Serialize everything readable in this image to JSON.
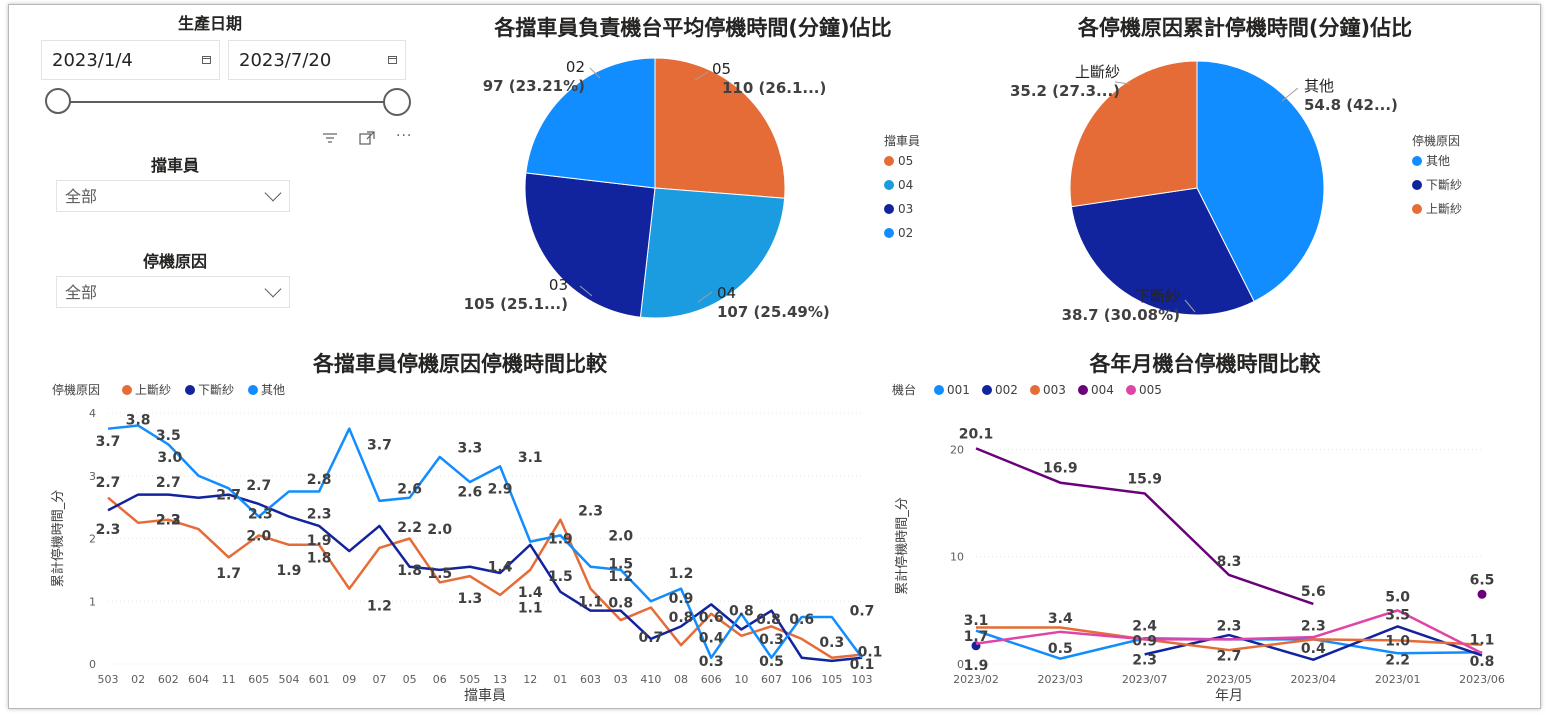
{
  "slicers": {
    "date": {
      "title": "生產日期",
      "start": "2023/1/4",
      "end": "2023/7/20"
    },
    "operator": {
      "title": "擋車員",
      "value": "全部"
    },
    "reason": {
      "title": "停機原因",
      "value": "全部"
    }
  },
  "colors": {
    "orange": "#E66C37",
    "blue": "#118DFF",
    "navy": "#12239E",
    "lightblue": "#1B9BE0",
    "purple": "#6B007B",
    "pink": "#E044A7"
  },
  "pie1": {
    "title": "各擋車員負責機台平均停機時間(分鐘)佔比",
    "legend_title": "擋車員",
    "slices": [
      {
        "name": "05",
        "value": 110,
        "label_top": "05",
        "label_bottom": "110 (26.1...)",
        "color": "#E66C37"
      },
      {
        "name": "04",
        "value": 107,
        "label_top": "04",
        "label_bottom": "107 (25.49%)",
        "color": "#1B9BE0"
      },
      {
        "name": "03",
        "value": 105,
        "label_top": "03",
        "label_bottom": "105 (25.1...)",
        "color": "#12239E"
      },
      {
        "name": "02",
        "value": 97,
        "label_top": "02",
        "label_bottom": "97 (23.21%)",
        "color": "#118DFF"
      }
    ]
  },
  "pie2": {
    "title": "各停機原因累計停機時間(分鐘)佔比",
    "legend_title": "停機原因",
    "slices": [
      {
        "name": "其他",
        "value": 54.8,
        "label_top": "其他",
        "label_bottom": "54.8 (42...)",
        "color": "#118DFF"
      },
      {
        "name": "下斷紗",
        "value": 38.7,
        "label_top": "下斷紗",
        "label_bottom": "38.7 (30.08%)",
        "color": "#12239E"
      },
      {
        "name": "上斷紗",
        "value": 35.2,
        "label_top": "上斷紗",
        "label_bottom": "35.2 (27.3...)",
        "color": "#E66C37"
      }
    ]
  },
  "chart_data": [
    {
      "type": "line",
      "title": "各擋車員停機原因停機時間比較",
      "xlabel": "擋車員",
      "ylabel": "累計停機時間_分",
      "legend_title": "停機原因",
      "ylim": [
        0,
        4
      ],
      "yticks": [
        "0",
        "1",
        "2",
        "3",
        "4"
      ],
      "categories": [
        "503",
        "02",
        "602",
        "604",
        "11",
        "605",
        "504",
        "601",
        "09",
        "07",
        "05",
        "06",
        "505",
        "13",
        "12",
        "01",
        "603",
        "03",
        "410",
        "08",
        "606",
        "10",
        "607",
        "106",
        "105",
        "103"
      ],
      "series": [
        {
          "name": "上斷紗",
          "color": "#E66C37",
          "values": [
            2.65,
            2.25,
            2.3,
            2.15,
            1.7,
            2.05,
            1.9,
            1.9,
            1.2,
            1.85,
            2.0,
            1.3,
            1.4,
            1.1,
            1.5,
            2.3,
            1.2,
            0.7,
            0.9,
            0.3,
            0.8,
            0.45,
            0.6,
            0.4,
            0.1,
            0.15
          ]
        },
        {
          "name": "下斷紗",
          "color": "#12239E",
          "values": [
            2.45,
            2.7,
            2.7,
            2.65,
            2.7,
            2.55,
            2.35,
            2.2,
            1.8,
            2.2,
            1.55,
            1.5,
            1.55,
            1.45,
            1.9,
            1.15,
            0.85,
            0.85,
            0.4,
            0.6,
            0.95,
            0.55,
            0.85,
            0.1,
            0.05,
            0.1
          ]
        },
        {
          "name": "其他",
          "color": "#118DFF",
          "values": [
            3.75,
            3.8,
            3.5,
            3.0,
            2.8,
            2.35,
            2.75,
            2.75,
            3.75,
            2.6,
            2.65,
            3.3,
            2.9,
            3.15,
            1.95,
            2.05,
            1.55,
            1.5,
            1.0,
            1.2,
            0.1,
            0.8,
            0.1,
            0.75,
            0.75,
            0.1
          ]
        }
      ],
      "data_labels": [
        "3.7",
        "3.8",
        "3.5",
        "3.0",
        "2.7",
        "2.7",
        "2.7",
        "2.3",
        "2.3",
        "2.2",
        "1.7",
        "2.0",
        "2.7",
        "2.3",
        "1.9",
        "1.8",
        "1.9",
        "2.8",
        "2.3",
        "3.7",
        "1.2",
        "2.6",
        "2.2",
        "1.8",
        "2.0",
        "1.5",
        "3.3",
        "2.6",
        "1.3",
        "2.9",
        "1.4",
        "3.1",
        "1.4",
        "1.1",
        "1.9",
        "1.5",
        "1.1",
        "2.3",
        "2.0",
        "1.5",
        "1.2",
        "0.8",
        "0.7",
        "1.2",
        "0.9",
        "0.8",
        "0.6",
        "0.4",
        "0.3",
        "0.8",
        "0.8",
        "0.3",
        "0.5",
        "0.6",
        "0.3",
        "0.7",
        "0.1",
        "0.1"
      ]
    },
    {
      "type": "line",
      "title": "各年月機台停機時間比較",
      "xlabel": "年月",
      "ylabel": "累計停機時間_分",
      "legend_title": "機台",
      "ylim": [
        0,
        22
      ],
      "yticks": [
        "0",
        "10",
        "20"
      ],
      "categories": [
        "2023/02",
        "2023/03",
        "2023/07",
        "2023/05",
        "2023/04",
        "2023/01",
        "2023/06"
      ],
      "series": [
        {
          "name": "001",
          "color": "#118DFF",
          "values": [
            3.1,
            0.5,
            2.4,
            2.3,
            2.3,
            1.0,
            1.1
          ]
        },
        {
          "name": "002",
          "color": "#12239E",
          "values": [
            1.7,
            null,
            0.9,
            2.7,
            0.4,
            3.5,
            0.8
          ]
        },
        {
          "name": "003",
          "color": "#E66C37",
          "values": [
            3.4,
            3.4,
            2.3,
            1.3,
            2.3,
            2.2,
            1.8
          ]
        },
        {
          "name": "004",
          "color": "#6B007B",
          "values": [
            20.1,
            16.9,
            15.9,
            8.3,
            5.6,
            null,
            6.5
          ]
        },
        {
          "name": "005",
          "color": "#E044A7",
          "values": [
            1.9,
            3.0,
            2.3,
            2.3,
            2.5,
            5.0,
            1.0
          ]
        }
      ],
      "data_labels": [
        {
          "text": "20.1",
          "x": 0,
          "y": 21.5
        },
        {
          "text": "16.9",
          "x": 1,
          "y": 18.3
        },
        {
          "text": "15.9",
          "x": 2,
          "y": 17.3
        },
        {
          "text": "8.3",
          "x": 3,
          "y": 9.6
        },
        {
          "text": "5.6",
          "x": 4,
          "y": 6.8
        },
        {
          "text": "6.5",
          "x": 6,
          "y": 7.9
        },
        {
          "text": "3.1",
          "x": 0,
          "y": 4.1
        },
        {
          "text": "1.7",
          "x": 0,
          "y": 2.6
        },
        {
          "text": "1.9",
          "x": 0,
          "y": -0.1
        },
        {
          "text": "3.4",
          "x": 1,
          "y": 4.3
        },
        {
          "text": "0.5",
          "x": 1,
          "y": 1.5
        },
        {
          "text": "2.4",
          "x": 2,
          "y": 3.6
        },
        {
          "text": "0.9",
          "x": 2,
          "y": 2.2
        },
        {
          "text": "2.3",
          "x": 2,
          "y": 0.4
        },
        {
          "text": "2.3",
          "x": 3,
          "y": 3.6
        },
        {
          "text": "2.7",
          "x": 3,
          "y": 0.8
        },
        {
          "text": "2.3",
          "x": 4,
          "y": 3.6
        },
        {
          "text": "0.4",
          "x": 4,
          "y": 1.5
        },
        {
          "text": "5.0",
          "x": 5,
          "y": 6.3
        },
        {
          "text": "3.5",
          "x": 5,
          "y": 4.6
        },
        {
          "text": "1.0",
          "x": 5,
          "y": 2.2
        },
        {
          "text": "2.2",
          "x": 5,
          "y": 0.4
        },
        {
          "text": "1.1",
          "x": 6,
          "y": 2.3
        },
        {
          "text": "0.8",
          "x": 6,
          "y": 0.3
        }
      ]
    }
  ]
}
